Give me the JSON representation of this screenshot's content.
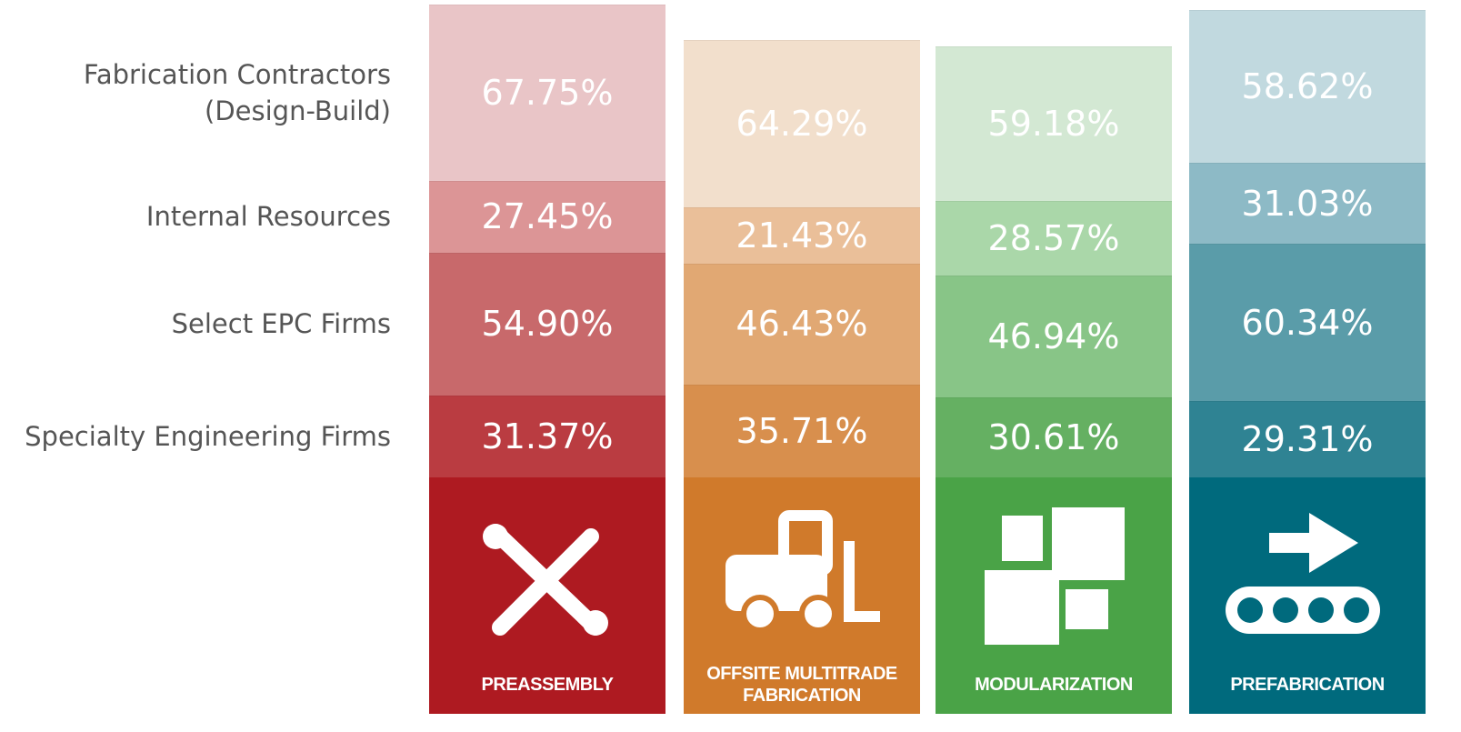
{
  "chart_data": {
    "type": "bar",
    "stacked": true,
    "categories": [
      "PREASSEMBLY",
      "OFFSITE MULTITRADE FABRICATION",
      "MODULARIZATION",
      "PREFABRICATION"
    ],
    "category_colors": [
      "#ae1a21",
      "#d07a2b",
      "#4aa347",
      "#006a7d"
    ],
    "series": [
      {
        "name": "Specialty Engineering Firms",
        "colors": [
          "#ba3c41",
          "#d88f4d",
          "#65b062",
          "#2f8393"
        ],
        "values": [
          31.37,
          35.71,
          30.61,
          29.31
        ],
        "value_labels": [
          "31.37%",
          "35.71%",
          "30.61%",
          "29.31%"
        ]
      },
      {
        "name": "Select EPC Firms",
        "colors": [
          "#c8696b",
          "#e1a873",
          "#88c587",
          "#5a9ca9"
        ],
        "values": [
          54.9,
          46.43,
          46.94,
          60.34
        ],
        "value_labels": [
          "54.90%",
          "46.43%",
          "46.94%",
          "60.34%"
        ]
      },
      {
        "name": "Internal Resources",
        "colors": [
          "#dc9596",
          "#eabf99",
          "#aad7a9",
          "#8dbac6"
        ],
        "values": [
          27.45,
          21.43,
          28.57,
          31.03
        ],
        "value_labels": [
          "27.45%",
          "21.43%",
          "28.57%",
          "31.03%"
        ]
      },
      {
        "name": "Fabrication Contractors (Design-Build)",
        "colors": [
          "#e9c5c7",
          "#f2dfcc",
          "#d3e8d3",
          "#c1d9df"
        ],
        "values": [
          67.75,
          64.29,
          59.18,
          58.62
        ],
        "value_labels": [
          "67.75%",
          "64.29%",
          "59.18%",
          "58.62%"
        ]
      }
    ]
  }
}
